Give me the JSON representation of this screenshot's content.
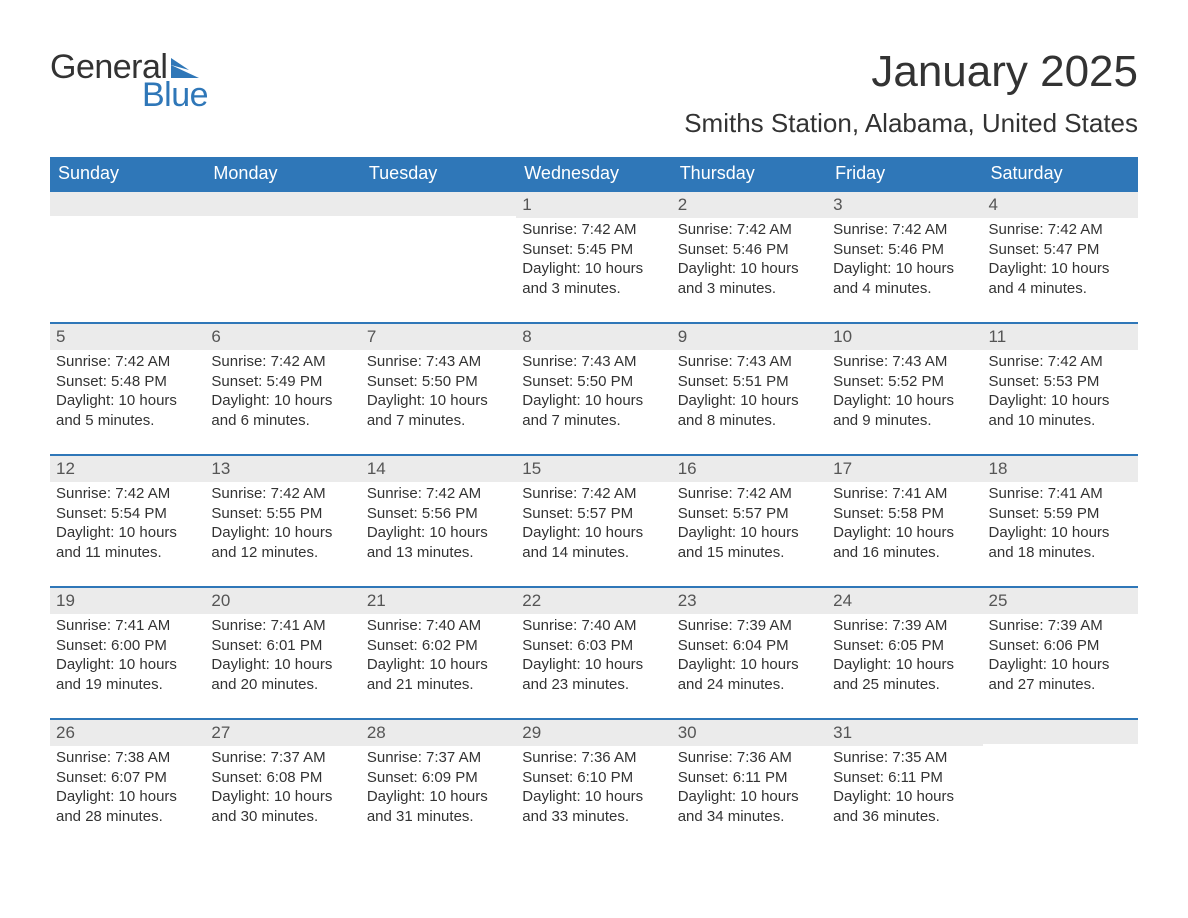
{
  "logo": {
    "word1": "General",
    "word2": "Blue",
    "shape_color": "#2f77b8"
  },
  "title": "January 2025",
  "location": "Smiths Station, Alabama, United States",
  "colors": {
    "header_bg": "#2f77b8",
    "header_text": "#ffffff",
    "daynum_bg": "#ebebeb",
    "daynum_border": "#2f77b8",
    "body_text": "#333333",
    "page_bg": "#ffffff"
  },
  "typography": {
    "title_fontsize": 44,
    "location_fontsize": 26,
    "header_fontsize": 18,
    "body_fontsize": 15,
    "logo_fontsize": 34
  },
  "layout": {
    "columns": 7,
    "rows": 5,
    "first_day_column_index": 3
  },
  "day_headers": [
    "Sunday",
    "Monday",
    "Tuesday",
    "Wednesday",
    "Thursday",
    "Friday",
    "Saturday"
  ],
  "weeks": [
    [
      null,
      null,
      null,
      {
        "n": "1",
        "sunrise": "Sunrise: 7:42 AM",
        "sunset": "Sunset: 5:45 PM",
        "daylight": "Daylight: 10 hours and 3 minutes."
      },
      {
        "n": "2",
        "sunrise": "Sunrise: 7:42 AM",
        "sunset": "Sunset: 5:46 PM",
        "daylight": "Daylight: 10 hours and 3 minutes."
      },
      {
        "n": "3",
        "sunrise": "Sunrise: 7:42 AM",
        "sunset": "Sunset: 5:46 PM",
        "daylight": "Daylight: 10 hours and 4 minutes."
      },
      {
        "n": "4",
        "sunrise": "Sunrise: 7:42 AM",
        "sunset": "Sunset: 5:47 PM",
        "daylight": "Daylight: 10 hours and 4 minutes."
      }
    ],
    [
      {
        "n": "5",
        "sunrise": "Sunrise: 7:42 AM",
        "sunset": "Sunset: 5:48 PM",
        "daylight": "Daylight: 10 hours and 5 minutes."
      },
      {
        "n": "6",
        "sunrise": "Sunrise: 7:42 AM",
        "sunset": "Sunset: 5:49 PM",
        "daylight": "Daylight: 10 hours and 6 minutes."
      },
      {
        "n": "7",
        "sunrise": "Sunrise: 7:43 AM",
        "sunset": "Sunset: 5:50 PM",
        "daylight": "Daylight: 10 hours and 7 minutes."
      },
      {
        "n": "8",
        "sunrise": "Sunrise: 7:43 AM",
        "sunset": "Sunset: 5:50 PM",
        "daylight": "Daylight: 10 hours and 7 minutes."
      },
      {
        "n": "9",
        "sunrise": "Sunrise: 7:43 AM",
        "sunset": "Sunset: 5:51 PM",
        "daylight": "Daylight: 10 hours and 8 minutes."
      },
      {
        "n": "10",
        "sunrise": "Sunrise: 7:43 AM",
        "sunset": "Sunset: 5:52 PM",
        "daylight": "Daylight: 10 hours and 9 minutes."
      },
      {
        "n": "11",
        "sunrise": "Sunrise: 7:42 AM",
        "sunset": "Sunset: 5:53 PM",
        "daylight": "Daylight: 10 hours and 10 minutes."
      }
    ],
    [
      {
        "n": "12",
        "sunrise": "Sunrise: 7:42 AM",
        "sunset": "Sunset: 5:54 PM",
        "daylight": "Daylight: 10 hours and 11 minutes."
      },
      {
        "n": "13",
        "sunrise": "Sunrise: 7:42 AM",
        "sunset": "Sunset: 5:55 PM",
        "daylight": "Daylight: 10 hours and 12 minutes."
      },
      {
        "n": "14",
        "sunrise": "Sunrise: 7:42 AM",
        "sunset": "Sunset: 5:56 PM",
        "daylight": "Daylight: 10 hours and 13 minutes."
      },
      {
        "n": "15",
        "sunrise": "Sunrise: 7:42 AM",
        "sunset": "Sunset: 5:57 PM",
        "daylight": "Daylight: 10 hours and 14 minutes."
      },
      {
        "n": "16",
        "sunrise": "Sunrise: 7:42 AM",
        "sunset": "Sunset: 5:57 PM",
        "daylight": "Daylight: 10 hours and 15 minutes."
      },
      {
        "n": "17",
        "sunrise": "Sunrise: 7:41 AM",
        "sunset": "Sunset: 5:58 PM",
        "daylight": "Daylight: 10 hours and 16 minutes."
      },
      {
        "n": "18",
        "sunrise": "Sunrise: 7:41 AM",
        "sunset": "Sunset: 5:59 PM",
        "daylight": "Daylight: 10 hours and 18 minutes."
      }
    ],
    [
      {
        "n": "19",
        "sunrise": "Sunrise: 7:41 AM",
        "sunset": "Sunset: 6:00 PM",
        "daylight": "Daylight: 10 hours and 19 minutes."
      },
      {
        "n": "20",
        "sunrise": "Sunrise: 7:41 AM",
        "sunset": "Sunset: 6:01 PM",
        "daylight": "Daylight: 10 hours and 20 minutes."
      },
      {
        "n": "21",
        "sunrise": "Sunrise: 7:40 AM",
        "sunset": "Sunset: 6:02 PM",
        "daylight": "Daylight: 10 hours and 21 minutes."
      },
      {
        "n": "22",
        "sunrise": "Sunrise: 7:40 AM",
        "sunset": "Sunset: 6:03 PM",
        "daylight": "Daylight: 10 hours and 23 minutes."
      },
      {
        "n": "23",
        "sunrise": "Sunrise: 7:39 AM",
        "sunset": "Sunset: 6:04 PM",
        "daylight": "Daylight: 10 hours and 24 minutes."
      },
      {
        "n": "24",
        "sunrise": "Sunrise: 7:39 AM",
        "sunset": "Sunset: 6:05 PM",
        "daylight": "Daylight: 10 hours and 25 minutes."
      },
      {
        "n": "25",
        "sunrise": "Sunrise: 7:39 AM",
        "sunset": "Sunset: 6:06 PM",
        "daylight": "Daylight: 10 hours and 27 minutes."
      }
    ],
    [
      {
        "n": "26",
        "sunrise": "Sunrise: 7:38 AM",
        "sunset": "Sunset: 6:07 PM",
        "daylight": "Daylight: 10 hours and 28 minutes."
      },
      {
        "n": "27",
        "sunrise": "Sunrise: 7:37 AM",
        "sunset": "Sunset: 6:08 PM",
        "daylight": "Daylight: 10 hours and 30 minutes."
      },
      {
        "n": "28",
        "sunrise": "Sunrise: 7:37 AM",
        "sunset": "Sunset: 6:09 PM",
        "daylight": "Daylight: 10 hours and 31 minutes."
      },
      {
        "n": "29",
        "sunrise": "Sunrise: 7:36 AM",
        "sunset": "Sunset: 6:10 PM",
        "daylight": "Daylight: 10 hours and 33 minutes."
      },
      {
        "n": "30",
        "sunrise": "Sunrise: 7:36 AM",
        "sunset": "Sunset: 6:11 PM",
        "daylight": "Daylight: 10 hours and 34 minutes."
      },
      {
        "n": "31",
        "sunrise": "Sunrise: 7:35 AM",
        "sunset": "Sunset: 6:11 PM",
        "daylight": "Daylight: 10 hours and 36 minutes."
      },
      null
    ]
  ]
}
